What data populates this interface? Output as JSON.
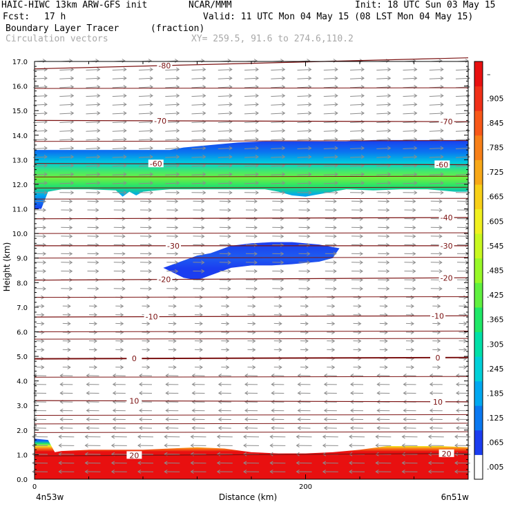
{
  "header": {
    "model": "HAIC-HIWC 13km ARW-GFS init",
    "org": "NCAR/MMM",
    "init": "Init: 18 UTC Sun 03 May 15",
    "fcst_label": "Fcst:",
    "fcst_value": "17 h",
    "valid": "Valid: 11 UTC Mon 04 May 15 (08 LST Mon 04 May 15)",
    "field": "Boundary Layer Tracer",
    "units": "(fraction)",
    "vectors": "Circulation vectors",
    "xy": "XY= 259.5, 91.6 to 274.6,110.2"
  },
  "chart_data": {
    "type": "heatmap",
    "xlabel": "Distance (km)",
    "ylabel": "Height (km)",
    "xlim": [
      0,
      320
    ],
    "ylim": [
      0,
      17
    ],
    "x_ticks": [
      {
        "v": 0,
        "label": "0"
      },
      {
        "v": 200,
        "label": "200"
      }
    ],
    "x_end_labels": {
      "left": "4n53w",
      "right": "6n51w"
    },
    "y_ticks": [
      "0.0",
      "1.0",
      "2.0",
      "3.0",
      "4.0",
      "5.0",
      "6.0",
      "7.0",
      "8.0",
      "9.0",
      "10.0",
      "11.0",
      "12.0",
      "13.0",
      "14.0",
      "15.0",
      "16.0",
      "17.0"
    ],
    "colorbar": {
      "labels": [
        ".005",
        ".065",
        ".125",
        ".185",
        ".245",
        ".305",
        ".365",
        ".425",
        ".485",
        ".545",
        ".605",
        ".665",
        ".725",
        ".785",
        ".845",
        ".905",
        "–"
      ],
      "colors": [
        "#ffffff",
        "#1b3df0",
        "#0a78f0",
        "#00a8f0",
        "#00d0d8",
        "#00e0a8",
        "#20e868",
        "#60f040",
        "#98f828",
        "#c8f820",
        "#f0f020",
        "#f8d018",
        "#f8a818",
        "#f88018",
        "#f85818",
        "#f03018",
        "#e81010"
      ]
    },
    "isotherms": [
      {
        "label": "-80",
        "yl": 16.7,
        "yr": 17.15,
        "labels_at": [
          30
        ]
      },
      {
        "label": "-70",
        "yl": 14.6,
        "yr": 14.55,
        "labels_at": [
          29,
          95
        ]
      },
      {
        "label": "-60",
        "yl": 12.85,
        "yr": 12.8,
        "labels_at": [
          28,
          94
        ]
      },
      {
        "label": "-40",
        "yl": 10.6,
        "yr": 10.65,
        "labels_at": [
          95
        ]
      },
      {
        "label": "-30",
        "yl": 9.5,
        "yr": 9.5,
        "labels_at": [
          32,
          95
        ]
      },
      {
        "label": "-20",
        "yl": 8.1,
        "yr": 8.2,
        "labels_at": [
          30,
          95
        ]
      },
      {
        "label": "-10",
        "yl": 6.6,
        "yr": 6.65,
        "labels_at": [
          27,
          93
        ]
      },
      {
        "label": "0",
        "yl": 4.9,
        "yr": 4.95,
        "labels_at": [
          23,
          93
        ]
      },
      {
        "label": "10",
        "yl": 3.2,
        "yr": 3.15,
        "labels_at": [
          23,
          93
        ]
      },
      {
        "label": "20",
        "yl": 0.95,
        "yr": 1.05,
        "labels_at": [
          23,
          95
        ]
      }
    ],
    "extra_lines": [
      15.9,
      13.75,
      12.3,
      11.85,
      11.4,
      10.0,
      9.0,
      7.4,
      6.0,
      5.7,
      4.15,
      2.6,
      2.25,
      1.9
    ],
    "tracer_regions": [
      {
        "name": "upper-layer",
        "x": [
          0,
          5,
          10,
          20,
          40,
          60,
          65,
          70,
          75,
          80,
          90,
          100,
          110,
          130,
          150,
          170,
          180,
          190,
          200,
          210,
          230,
          250,
          270,
          290,
          310,
          320
        ],
        "bottom": [
          11.0,
          11.0,
          11.7,
          11.8,
          11.8,
          11.75,
          11.5,
          11.7,
          11.55,
          11.7,
          11.75,
          11.8,
          11.8,
          11.8,
          11.8,
          11.8,
          11.7,
          11.55,
          11.5,
          11.6,
          11.8,
          11.75,
          11.8,
          11.8,
          11.7,
          11.7
        ],
        "top": [
          13.4,
          13.4,
          13.4,
          13.4,
          13.4,
          13.4,
          13.4,
          13.4,
          13.4,
          13.4,
          13.4,
          13.4,
          13.5,
          13.6,
          13.7,
          13.75,
          13.75,
          13.75,
          13.75,
          13.75,
          13.75,
          13.8,
          13.8,
          13.8,
          13.8,
          13.8
        ]
      },
      {
        "name": "mid-level-patch",
        "x": [
          95,
          110,
          120,
          130,
          145,
          160,
          175,
          190,
          200,
          210,
          220,
          225
        ],
        "bottom": [
          8.6,
          8.2,
          8.1,
          8.3,
          8.6,
          8.7,
          8.7,
          8.75,
          8.8,
          8.85,
          9.0,
          9.4
        ],
        "top": [
          8.6,
          8.9,
          9.1,
          9.2,
          9.5,
          9.6,
          9.65,
          9.65,
          9.6,
          9.55,
          9.45,
          9.4
        ]
      },
      {
        "name": "boundary-layer",
        "x": [
          0,
          10,
          15,
          20,
          40,
          80,
          100,
          120,
          140,
          160,
          180,
          200,
          220,
          240,
          260,
          280,
          300,
          320
        ],
        "bottom": [
          0,
          0,
          0,
          0,
          0,
          0,
          0,
          0,
          0,
          0,
          0,
          0,
          0,
          0,
          0,
          0,
          0,
          0
        ],
        "top": [
          1.65,
          1.6,
          1.1,
          1.15,
          1.2,
          1.2,
          1.25,
          1.3,
          1.25,
          1.1,
          1.05,
          1.05,
          1.1,
          1.2,
          1.35,
          1.35,
          1.35,
          1.3
        ]
      }
    ],
    "wind_vectors": [
      {
        "y_range": [
          11.5,
          17
        ],
        "dir": "east"
      },
      {
        "y_range": [
          7.5,
          11.5
        ],
        "dir": "east"
      },
      {
        "y_range": [
          4.5,
          7.5
        ],
        "dir": "east-weak"
      },
      {
        "y_range": [
          2.0,
          4.5
        ],
        "dir": "west"
      },
      {
        "y_range": [
          0.3,
          2.0
        ],
        "dir": "west-strong"
      }
    ]
  }
}
